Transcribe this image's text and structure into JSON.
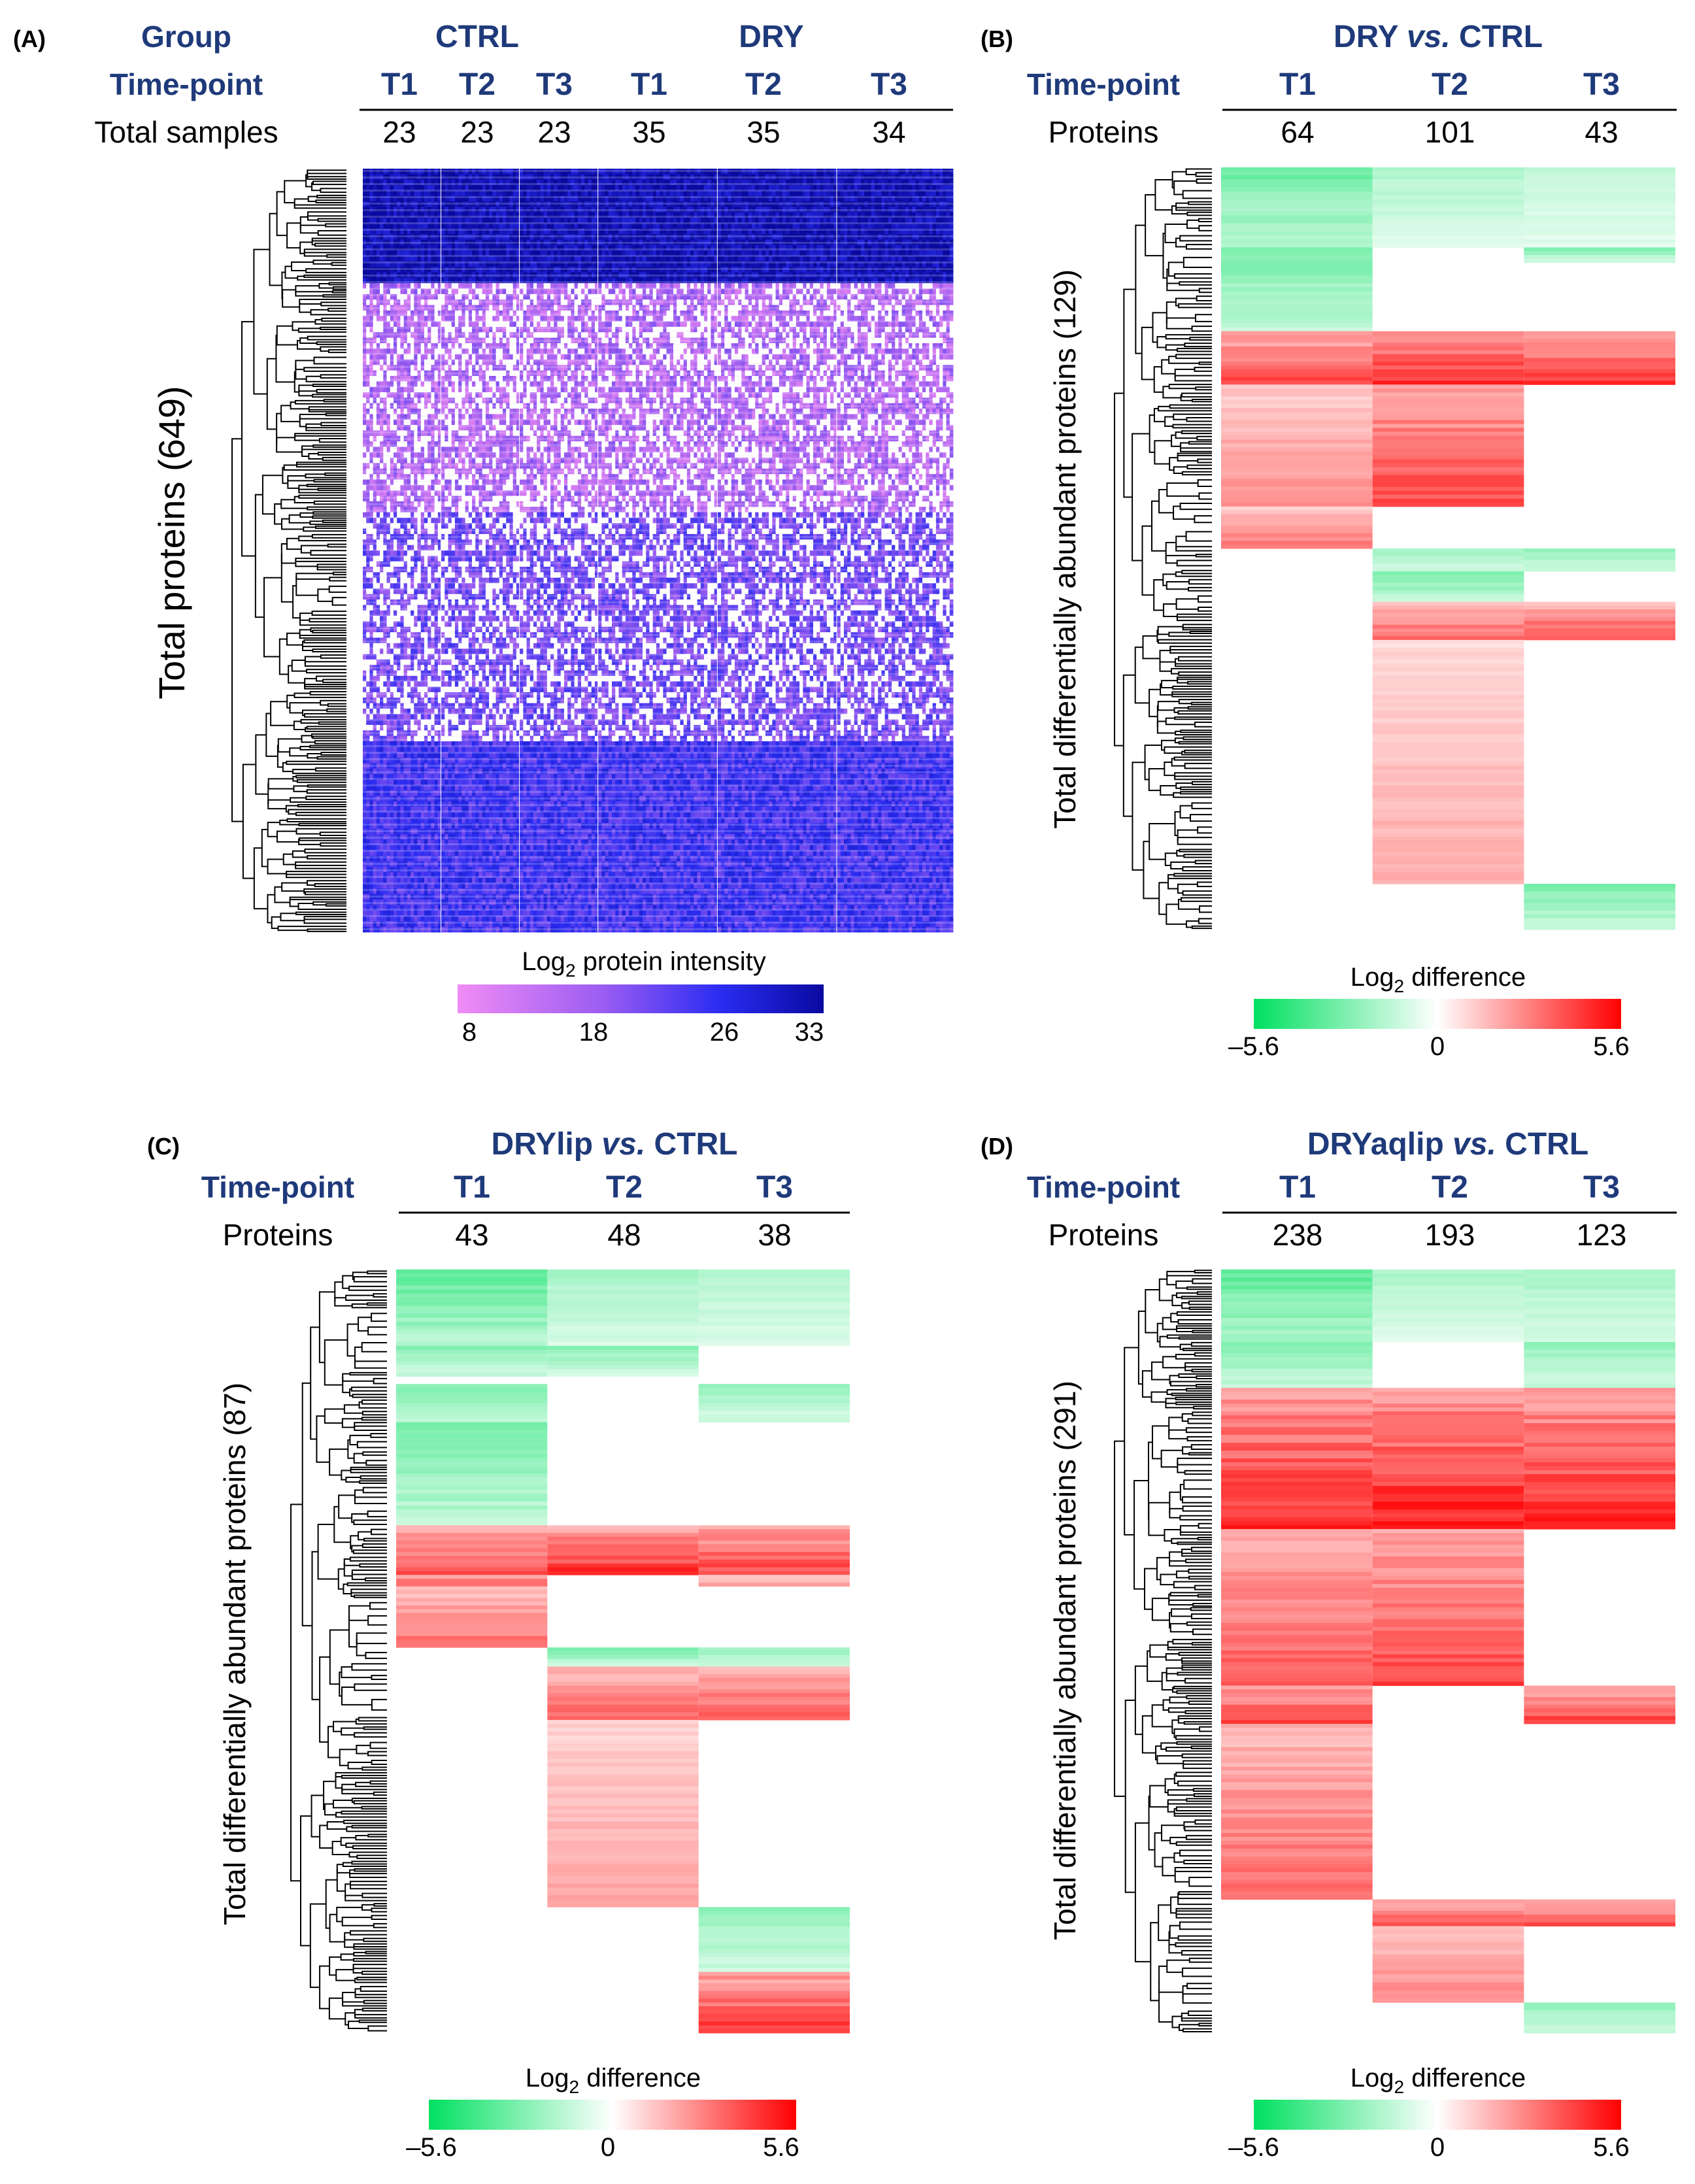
{
  "colors": {
    "header_blue": "#1f3a7a",
    "intensity_gradient": [
      "#f08cf5",
      "#9a5cf2",
      "#2a2cf2",
      "#0a0aa0"
    ],
    "diff_negative": "#00e060",
    "diff_zero": "#ffffff",
    "diff_positive": "#ff0000"
  },
  "panels": {
    "A": {
      "label": "(A)",
      "group_header": "Group",
      "timepoint_header": "Time-point",
      "samples_header": "Total samples",
      "groups": [
        "CTRL",
        "DRY"
      ],
      "timepoints": [
        "T1",
        "T2",
        "T3",
        "T1",
        "T2",
        "T3"
      ],
      "samples": [
        "23",
        "23",
        "23",
        "35",
        "35",
        "34"
      ],
      "yaxis_label": "Total proteins (649)",
      "legend_title": "Log",
      "legend_title_sub": "2",
      "legend_title_rest": " protein intensity",
      "legend_ticks": [
        "8",
        "18",
        "26",
        "33"
      ]
    },
    "B": {
      "label": "(B)",
      "title_pre": "DRY ",
      "title_vs": "vs.",
      "title_post": " CTRL",
      "timepoint_header": "Time-point",
      "proteins_header": "Proteins",
      "timepoints": [
        "T1",
        "T2",
        "T3"
      ],
      "proteins": [
        "64",
        "101",
        "43"
      ],
      "yaxis_label": "Total differentially abundant proteins (129)",
      "legend_title": "Log",
      "legend_title_sub": "2",
      "legend_title_rest": " difference",
      "legend_ticks": [
        "–5.6",
        "0",
        "5.6"
      ]
    },
    "C": {
      "label": "(C)",
      "title_pre": "DRYlip ",
      "title_vs": "vs.",
      "title_post": " CTRL",
      "timepoint_header": "Time-point",
      "proteins_header": "Proteins",
      "timepoints": [
        "T1",
        "T2",
        "T3"
      ],
      "proteins": [
        "43",
        "48",
        "38"
      ],
      "yaxis_label": "Total differentially abundant proteins (87)",
      "legend_title": "Log",
      "legend_title_sub": "2",
      "legend_title_rest": " difference",
      "legend_ticks": [
        "–5.6",
        "0",
        "5.6"
      ]
    },
    "D": {
      "label": "(D)",
      "title_pre": "DRYaqlip ",
      "title_vs": "vs.",
      "title_post": " CTRL",
      "timepoint_header": "Time-point",
      "proteins_header": "Proteins",
      "timepoints": [
        "T1",
        "T2",
        "T3"
      ],
      "proteins": [
        "238",
        "193",
        "123"
      ],
      "yaxis_label": "Total differentially abundant proteins (291)",
      "legend_title": "Log",
      "legend_title_sub": "2",
      "legend_title_rest": " difference",
      "legend_ticks": [
        "–5.6",
        "0",
        "5.6"
      ]
    }
  },
  "chart_data": [
    {
      "type": "heatmap",
      "panel": "A",
      "title": "Log2 protein intensity across samples",
      "ylabel": "Total proteins (649)",
      "value_range": [
        8,
        33
      ],
      "column_groups": [
        {
          "group": "CTRL",
          "timepoint": "T1",
          "samples": 23
        },
        {
          "group": "CTRL",
          "timepoint": "T2",
          "samples": 23
        },
        {
          "group": "CTRL",
          "timepoint": "T3",
          "samples": 23
        },
        {
          "group": "DRY",
          "timepoint": "T1",
          "samples": 35
        },
        {
          "group": "DRY",
          "timepoint": "T2",
          "samples": 35
        },
        {
          "group": "DRY",
          "timepoint": "T3",
          "samples": 34
        }
      ],
      "row_blocks": [
        {
          "rows": [
            0,
            0.15
          ],
          "level": 31
        },
        {
          "rows": [
            0.15,
            0.45
          ],
          "level": 14
        },
        {
          "rows": [
            0.45,
            0.75
          ],
          "level": 19
        },
        {
          "rows": [
            0.75,
            1.0
          ],
          "level": 23
        }
      ]
    },
    {
      "type": "heatmap",
      "panel": "B",
      "title": "DRY vs. CTRL",
      "ylabel": "Total differentially abundant proteins (129)",
      "value_range": [
        -5.6,
        5.6
      ],
      "columns": [
        "T1",
        "T2",
        "T3"
      ],
      "blocks": [
        {
          "rows": [
            0.0,
            0.105
          ],
          "values": [
            -2.6,
            -1.4,
            -1.1
          ]
        },
        {
          "rows": [
            0.105,
            0.215
          ],
          "values": [
            -2.4,
            null,
            null
          ]
        },
        {
          "rows": [
            0.105,
            0.125
          ],
          "values": [
            null,
            null,
            -2.2
          ]
        },
        {
          "rows": [
            0.215,
            0.285
          ],
          "values": [
            3.3,
            3.8,
            3.6
          ]
        },
        {
          "rows": [
            0.285,
            0.445
          ],
          "values": [
            2.0,
            3.4,
            null
          ]
        },
        {
          "rows": [
            0.445,
            0.5
          ],
          "values": [
            2.4,
            null,
            null
          ]
        },
        {
          "rows": [
            0.5,
            0.53
          ],
          "values": [
            null,
            -1.7,
            -1.8
          ]
        },
        {
          "rows": [
            0.53,
            0.57
          ],
          "values": [
            null,
            -2.6,
            null
          ]
        },
        {
          "rows": [
            0.57,
            0.62
          ],
          "values": [
            null,
            2.7,
            3.1
          ]
        },
        {
          "rows": [
            0.62,
            0.94
          ],
          "values": [
            null,
            1.5,
            null
          ]
        },
        {
          "rows": [
            0.94,
            1.0
          ],
          "values": [
            null,
            null,
            -2.3
          ]
        }
      ]
    },
    {
      "type": "heatmap",
      "panel": "C",
      "title": "DRYlip vs. CTRL",
      "ylabel": "Total differentially abundant proteins (87)",
      "value_range": [
        -5.6,
        5.6
      ],
      "columns": [
        "T1",
        "T2",
        "T3"
      ],
      "blocks": [
        {
          "rows": [
            0.0,
            0.1
          ],
          "values": [
            -3.0,
            -1.6,
            -1.4
          ]
        },
        {
          "rows": [
            0.1,
            0.14
          ],
          "values": [
            -2.2,
            -2.0,
            null
          ]
        },
        {
          "rows": [
            0.15,
            0.2
          ],
          "values": [
            -2.3,
            null,
            -1.8
          ]
        },
        {
          "rows": [
            0.2,
            0.335
          ],
          "values": [
            -2.5,
            null,
            null
          ]
        },
        {
          "rows": [
            0.335,
            0.4
          ],
          "values": [
            3.2,
            3.8,
            3.4
          ]
        },
        {
          "rows": [
            0.4,
            0.415
          ],
          "values": [
            3.0,
            null,
            1.8
          ]
        },
        {
          "rows": [
            0.415,
            0.495
          ],
          "values": [
            2.6,
            null,
            null
          ]
        },
        {
          "rows": [
            0.495,
            0.52
          ],
          "values": [
            null,
            -2.4,
            -1.8
          ]
        },
        {
          "rows": [
            0.52,
            0.59
          ],
          "values": [
            null,
            2.8,
            3.0
          ]
        },
        {
          "rows": [
            0.59,
            0.835
          ],
          "values": [
            null,
            1.7,
            null
          ]
        },
        {
          "rows": [
            0.835,
            0.92
          ],
          "values": [
            null,
            null,
            -2.0
          ]
        },
        {
          "rows": [
            0.92,
            1.0
          ],
          "values": [
            null,
            null,
            3.6
          ]
        }
      ]
    },
    {
      "type": "heatmap",
      "panel": "D",
      "title": "DRYaqlip vs. CTRL",
      "ylabel": "Total differentially abundant proteins (291)",
      "value_range": [
        -5.6,
        5.6
      ],
      "columns": [
        "T1",
        "T2",
        "T3"
      ],
      "blocks": [
        {
          "rows": [
            0.0,
            0.095
          ],
          "values": [
            -3.0,
            -1.5,
            -1.6
          ]
        },
        {
          "rows": [
            0.095,
            0.155
          ],
          "values": [
            -2.2,
            null,
            -2.0
          ]
        },
        {
          "rows": [
            0.155,
            0.34
          ],
          "values": [
            4.0,
            4.2,
            4.0
          ]
        },
        {
          "rows": [
            0.34,
            0.545
          ],
          "values": [
            3.0,
            3.4,
            null
          ]
        },
        {
          "rows": [
            0.545,
            0.595
          ],
          "values": [
            3.6,
            null,
            3.5
          ]
        },
        {
          "rows": [
            0.595,
            0.825
          ],
          "values": [
            2.8,
            null,
            null
          ]
        },
        {
          "rows": [
            0.825,
            0.86
          ],
          "values": [
            null,
            3.0,
            3.2
          ]
        },
        {
          "rows": [
            0.86,
            0.96
          ],
          "values": [
            null,
            2.2,
            null
          ]
        },
        {
          "rows": [
            0.96,
            1.0
          ],
          "values": [
            null,
            null,
            -2.0
          ]
        }
      ]
    }
  ]
}
